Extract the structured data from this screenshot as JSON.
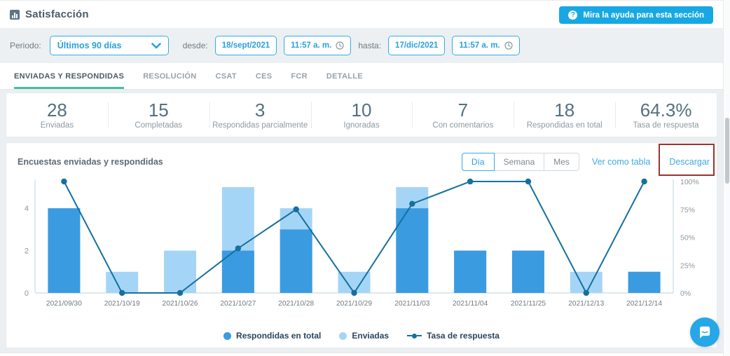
{
  "header": {
    "title": "Satisfacción",
    "help_button": "Mira la ayuda para esta sección"
  },
  "filters": {
    "period_label": "Periodo:",
    "period_value": "Últimos 90 días",
    "from_label": "desde:",
    "from_date": "18/sept/2021",
    "from_time": "11:57 a. m.",
    "to_label": "hasta:",
    "to_date": "17/dic/2021",
    "to_time": "11:57 a. m."
  },
  "tabs": [
    {
      "label": "ENVIADAS Y RESPONDIDAS",
      "active": true
    },
    {
      "label": "RESOLUCIÓN",
      "active": false
    },
    {
      "label": "CSAT",
      "active": false
    },
    {
      "label": "CES",
      "active": false
    },
    {
      "label": "FCR",
      "active": false
    },
    {
      "label": "DETALLE",
      "active": false
    }
  ],
  "stats": [
    {
      "value": "28",
      "label": "Enviadas"
    },
    {
      "value": "15",
      "label": "Completadas"
    },
    {
      "value": "3",
      "label": "Respondidas parcialmente"
    },
    {
      "value": "10",
      "label": "Ignoradas"
    },
    {
      "value": "7",
      "label": "Con comentarios"
    },
    {
      "value": "18",
      "label": "Respondidas en total"
    },
    {
      "value": "64.3%",
      "label": "Tasa de respuesta"
    }
  ],
  "chart": {
    "title": "Encuestas enviadas y respondidas",
    "granularity": [
      "Día",
      "Semana",
      "Mes"
    ],
    "active_granularity": "Día",
    "view_as_table_label": "Ver como tabla",
    "download_label": "Descargar"
  },
  "chart_data": {
    "type": "bar",
    "subtype": "overlaid bars + percent line",
    "categories": [
      "2021/09/30",
      "2021/10/19",
      "2021/10/26",
      "2021/10/27",
      "2021/10/28",
      "2021/10/29",
      "2021/11/03",
      "2021/11/04",
      "2021/11/25",
      "2021/12/13",
      "2021/12/14"
    ],
    "series": [
      {
        "name": "Respondidas en total",
        "type": "bar",
        "color": "#3b9be1",
        "values": [
          4,
          0,
          0,
          2,
          3,
          0,
          4,
          2,
          2,
          0,
          1
        ]
      },
      {
        "name": "Enviadas",
        "type": "bar",
        "color": "#a5d5f6",
        "values": [
          4,
          1,
          2,
          5,
          4,
          1,
          5,
          2,
          2,
          1,
          1
        ]
      },
      {
        "name": "Tasa de respuesta",
        "type": "line",
        "color": "#15709f",
        "axis": "right",
        "values_pct": [
          100,
          0,
          0,
          40,
          75,
          0,
          80,
          100,
          100,
          0,
          100
        ]
      }
    ],
    "left_axis": {
      "ticks": [
        0,
        2,
        4
      ],
      "grid": false
    },
    "right_axis": {
      "ticks": [
        "0%",
        "25%",
        "50%",
        "75%",
        "100%"
      ],
      "min": 0,
      "max": 100
    },
    "legend_position": "bottom",
    "axis_color": "#cfe0ea",
    "tick_text_color": "#8d979e",
    "annotation_box_color": "#9b342f"
  }
}
